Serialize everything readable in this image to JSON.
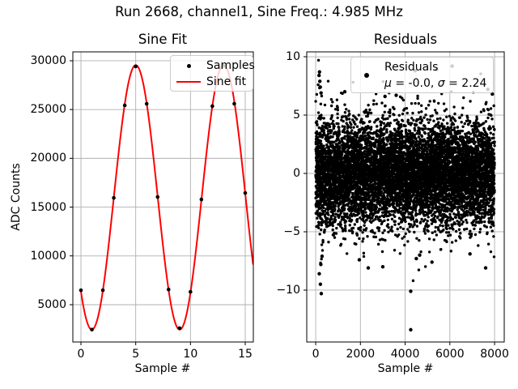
{
  "figure": {
    "title": "Run 2668, channel1, Sine Freq.: 4.985 MHz",
    "background": "#ffffff",
    "grid_color": "#b0b0b0",
    "spine_color": "#000000"
  },
  "chart_data": [
    {
      "id": "sine_fit",
      "type": "scatter+line",
      "title": "Sine Fit",
      "xlabel": "Sample #",
      "ylabel": "ADC Counts",
      "xlim": [
        -0.74,
        15.74
      ],
      "ylim": [
        1180,
        30910
      ],
      "grid": true,
      "xticks": {
        "values": [
          0,
          5,
          10,
          15
        ],
        "labels": [
          "0",
          "5",
          "10",
          "15"
        ]
      },
      "yticks": {
        "values": [
          5000,
          10000,
          15000,
          20000,
          25000,
          30000
        ],
        "labels": [
          "5000",
          "10000",
          "15000",
          "20000",
          "25000",
          "30000"
        ]
      },
      "legend": {
        "position": "upper right",
        "entries": [
          {
            "label": "Samples",
            "marker": "dot",
            "color": "#000000"
          },
          {
            "label": "Sine fit",
            "marker": "line",
            "color": "#ff0000"
          }
        ]
      },
      "samples": {
        "color": "#000000",
        "x": [
          0,
          1,
          2,
          3,
          4,
          5,
          6,
          7,
          8,
          9,
          10,
          11,
          12,
          13,
          14,
          15
        ],
        "y": [
          6480,
          2450,
          6480,
          15950,
          25430,
          29420,
          25590,
          16040,
          6560,
          2600,
          6320,
          15790,
          25350,
          29480,
          25600,
          16450
        ]
      },
      "fit_curve": {
        "label": "Sine fit",
        "color": "#ff0000",
        "offset": 16000,
        "amplitude": 13550,
        "freq_cycles_per_sample": 0.1246,
        "phase_zero_sample": 3.0,
        "x_start": 0,
        "x_end": 15.74,
        "line_width": 2
      }
    },
    {
      "id": "residuals",
      "type": "scatter",
      "title": "Residuals",
      "xlabel": "Sample #",
      "ylabel": "",
      "xlim": [
        -400,
        8432
      ],
      "ylim": [
        -14.45,
        10.42
      ],
      "grid": true,
      "xticks": {
        "values": [
          0,
          2000,
          4000,
          6000,
          8000
        ],
        "labels": [
          "0",
          "2000",
          "4000",
          "6000",
          "8000"
        ]
      },
      "yticks": {
        "values": [
          -10,
          -5,
          0,
          5,
          10
        ],
        "labels": [
          "−10",
          "−5",
          "0",
          "5",
          "10"
        ]
      },
      "legend": {
        "position": "upper right",
        "title": "Residuals",
        "marker": "dot",
        "color": "#000000",
        "stats_line": "μ = -0.0, σ = 2.24",
        "stats_parts": [
          "μ",
          " = -0.0, ",
          "σ",
          " = 2.24"
        ]
      },
      "stats": {
        "mu": "-0.0",
        "sigma": "2.24"
      },
      "points": {
        "n": 8000,
        "x_min": 0,
        "x_max": 8000,
        "distribution": "gaussian",
        "mean": 0,
        "sigma": 2.24,
        "seed": 7,
        "edge_burst": {
          "x_range": [
            80,
            330
          ],
          "sigma": 4.0,
          "fraction": 0.25
        },
        "outliers": [
          [
            150,
            8.4
          ],
          [
            170,
            8.7
          ],
          [
            185,
            7.9
          ],
          [
            205,
            7.4
          ],
          [
            240,
            6.9
          ],
          [
            160,
            -8.6
          ],
          [
            210,
            -9.5
          ],
          [
            250,
            -10.3
          ],
          [
            230,
            -7.8
          ],
          [
            285,
            -7.1
          ],
          [
            1300,
            7.0
          ],
          [
            1950,
            -7.4
          ],
          [
            2350,
            -8.1
          ],
          [
            3000,
            -8.0
          ],
          [
            3100,
            6.6
          ],
          [
            3600,
            6.7
          ],
          [
            4250,
            -10.1
          ],
          [
            4250,
            -13.4
          ],
          [
            4450,
            8.8
          ],
          [
            4500,
            -7.3
          ],
          [
            4650,
            -7.0
          ],
          [
            5200,
            -7.6
          ],
          [
            5400,
            8.9
          ],
          [
            6100,
            9.2
          ],
          [
            6900,
            -6.9
          ],
          [
            7600,
            -8.1
          ],
          [
            7700,
            7.2
          ],
          [
            7900,
            6.8
          ]
        ]
      }
    }
  ]
}
